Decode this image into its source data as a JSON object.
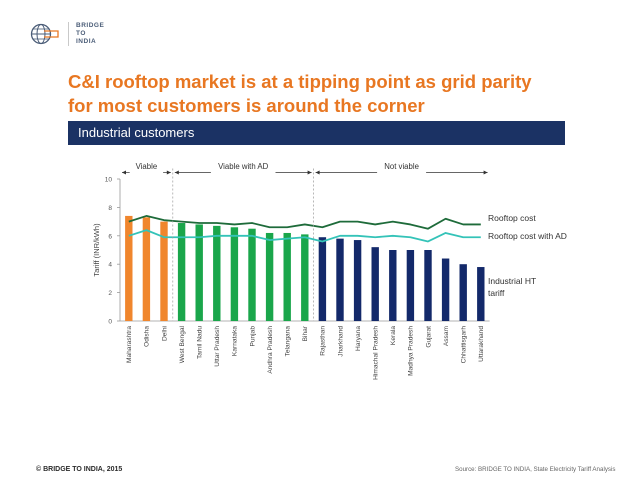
{
  "logo": {
    "icon": "globe-grid-icon",
    "line1": "BRIDGE",
    "line2": "TO",
    "line3": "INDIA"
  },
  "title": {
    "line1": "C&I rooftop market is at a tipping point as grid parity",
    "line2": "for most customers is around the corner"
  },
  "banner": {
    "label": "Industrial customers"
  },
  "colors": {
    "title": "#e87722",
    "banner": "#1b3264",
    "viable": "#f0862d",
    "viable_with_ad": "#1aa64b",
    "not_viable": "#13296a",
    "rooftop_cost": "#1e6b3a",
    "rooftop_cost_with_ad": "#34c3b8"
  },
  "chart_data": {
    "type": "bar",
    "title": "Industrial customers",
    "xlabel": "",
    "ylabel": "Tariff (INR/kWh)",
    "ylim": [
      0,
      10
    ],
    "yticks": [
      "0",
      "2",
      "4",
      "6",
      "8",
      "10"
    ],
    "grid": false,
    "categories": [
      "Maharashtra",
      "Odisha",
      "Delhi",
      "West Bengal",
      "Tamil Nadu",
      "Uttar Pradesh",
      "Karnataka",
      "Punjab",
      "Andhra Pradesh",
      "Telangana",
      "Bihar",
      "Rajasthan",
      "Jharkhand",
      "Haryana",
      "Himachal Pradesh",
      "Kerala",
      "Madhya Pradesh",
      "Gujarat",
      "Assam",
      "Chhattisgarh",
      "Uttarakhand"
    ],
    "groups": [
      {
        "label": "Viable",
        "start": 0,
        "end": 2,
        "color_key": "viable"
      },
      {
        "label": "Viable with AD",
        "start": 3,
        "end": 10,
        "color_key": "viable_with_ad"
      },
      {
        "label": "Not viable",
        "start": 11,
        "end": 20,
        "color_key": "not_viable"
      }
    ],
    "series": [
      {
        "name": "Industrial HT tariff",
        "type": "bar",
        "values": [
          7.4,
          7.3,
          7.0,
          6.9,
          6.8,
          6.7,
          6.6,
          6.5,
          6.2,
          6.2,
          6.1,
          5.9,
          5.8,
          5.7,
          5.2,
          5.0,
          5.0,
          5.0,
          4.4,
          4.0,
          3.8
        ]
      },
      {
        "name": "Rooftop cost",
        "type": "line",
        "values": [
          7.0,
          7.4,
          7.1,
          7.0,
          6.9,
          6.9,
          6.8,
          6.9,
          6.6,
          6.6,
          6.8,
          6.6,
          7.0,
          7.0,
          6.8,
          7.0,
          6.8,
          6.5,
          7.2,
          6.8,
          6.8
        ]
      },
      {
        "name": "Rooftop cost with AD",
        "type": "line",
        "values": [
          6.0,
          6.4,
          5.9,
          5.9,
          5.9,
          6.0,
          6.0,
          6.0,
          5.7,
          5.8,
          5.9,
          5.6,
          6.0,
          6.0,
          5.9,
          6.0,
          5.9,
          5.6,
          6.2,
          5.9,
          5.9
        ]
      }
    ],
    "legend": {
      "rooftop_cost": "Rooftop cost",
      "rooftop_cost_with_ad": "Rooftop cost with AD",
      "tariff_line1": "Industrial HT",
      "tariff_line2": "tariff"
    }
  },
  "footer": {
    "copyright": "© BRIDGE TO INDIA, 2015",
    "source": "Source: BRIDGE TO INDIA, State Electricity Tariff Analysis"
  }
}
